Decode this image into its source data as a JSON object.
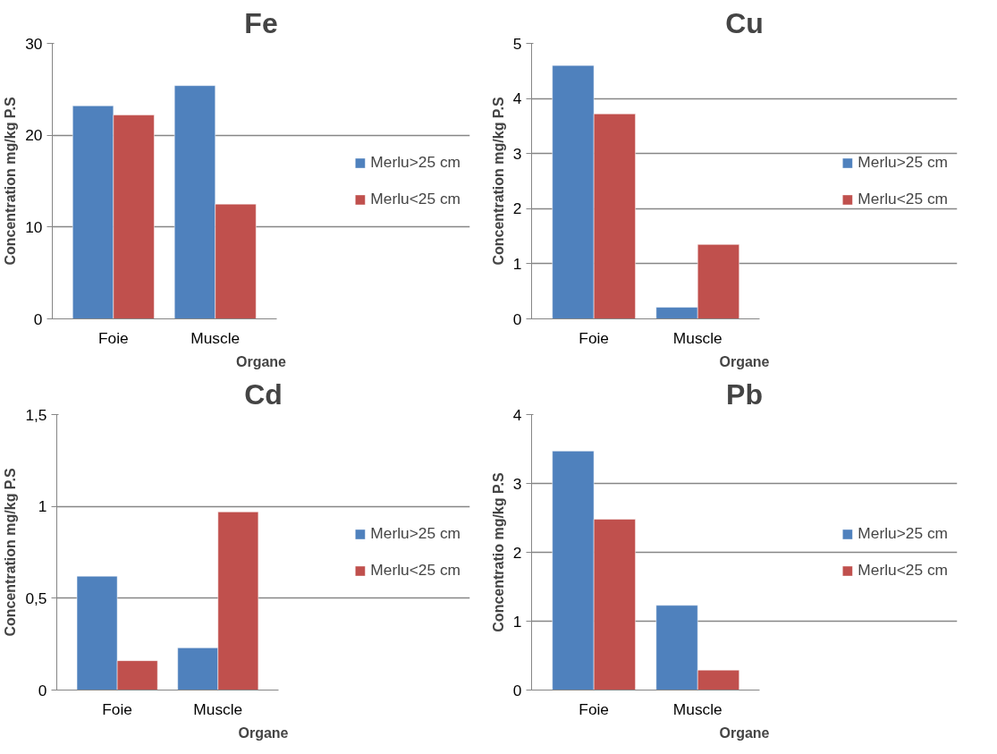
{
  "chart_data": [
    {
      "type": "bar",
      "title": "Fe",
      "xlabel": "Organe",
      "ylabel": "Concentration mg/kg P.S",
      "categories": [
        "Foie",
        "Muscle"
      ],
      "series": [
        {
          "name": "Merlu>25 cm",
          "color": "#4f81bd",
          "values": [
            23.2,
            25.4
          ]
        },
        {
          "name": "Merlu<25 cm",
          "color": "#c0504d",
          "values": [
            22.2,
            12.5
          ]
        }
      ],
      "ylim": [
        0,
        30
      ],
      "yticks": [
        0,
        10,
        20,
        30
      ],
      "grid": "y",
      "legend": "right"
    },
    {
      "type": "bar",
      "title": "Cu",
      "xlabel": "Organe",
      "ylabel": "Concentration mg/kg P.S",
      "categories": [
        "Foie",
        "Muscle"
      ],
      "series": [
        {
          "name": "Merlu>25 cm",
          "color": "#4f81bd",
          "values": [
            4.6,
            0.21
          ]
        },
        {
          "name": "Merlu<25 cm",
          "color": "#c0504d",
          "values": [
            3.72,
            1.35
          ]
        }
      ],
      "ylim": [
        0,
        5
      ],
      "yticks": [
        0,
        1,
        2,
        3,
        4,
        5
      ],
      "grid": "y",
      "legend": "right"
    },
    {
      "type": "bar",
      "title": "Cd",
      "xlabel": "Organe",
      "ylabel": "Concentration mg/kg P.S",
      "categories": [
        "Foie",
        "Muscle"
      ],
      "series": [
        {
          "name": "Merlu>25 cm",
          "color": "#4f81bd",
          "values": [
            0.62,
            0.23
          ]
        },
        {
          "name": "Merlu<25 cm",
          "color": "#c0504d",
          "values": [
            0.16,
            0.97
          ]
        }
      ],
      "ylim": [
        0,
        1.5
      ],
      "yticks": [
        0,
        {
          "value": 0.5,
          "label": "0,5"
        },
        1,
        {
          "value": 1.5,
          "label": "1,5"
        }
      ],
      "grid": "y",
      "legend": "right"
    },
    {
      "type": "bar",
      "title": "Pb",
      "xlabel": "Organe",
      "ylabel": "Concentratio mg/kg P.S",
      "categories": [
        "Foie",
        "Muscle"
      ],
      "series": [
        {
          "name": "Merlu>25 cm",
          "color": "#4f81bd",
          "values": [
            3.47,
            1.23
          ]
        },
        {
          "name": "Merlu<25 cm",
          "color": "#c0504d",
          "values": [
            2.48,
            0.29
          ]
        }
      ],
      "ylim": [
        0,
        4
      ],
      "yticks": [
        0,
        1,
        2,
        3,
        4
      ],
      "grid": "y",
      "legend": "right"
    }
  ]
}
